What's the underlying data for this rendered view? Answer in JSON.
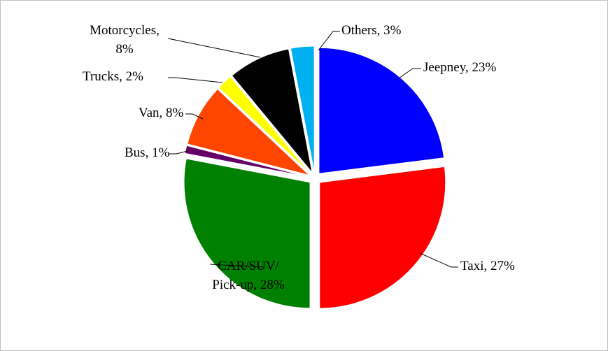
{
  "chart_data": {
    "type": "pie",
    "labels": [
      [
        "Jeepney, 23%"
      ],
      [
        "Taxi, 27%"
      ],
      [
        "CAR/SUV/",
        "Pick-up, 28%"
      ],
      [
        "Bus, 1%"
      ],
      [
        "Van, 8%"
      ],
      [
        "Trucks, 2%"
      ],
      [
        "Motorcycles,",
        "8%"
      ],
      [
        "Others, 3%"
      ]
    ],
    "values": [
      23,
      27,
      28,
      1,
      8,
      2,
      8,
      3
    ],
    "colors": [
      "#0000ff",
      "#ff0000",
      "#008000",
      "#660066",
      "#ff4500",
      "#ffff00",
      "#000000",
      "#00b0f0"
    ]
  }
}
